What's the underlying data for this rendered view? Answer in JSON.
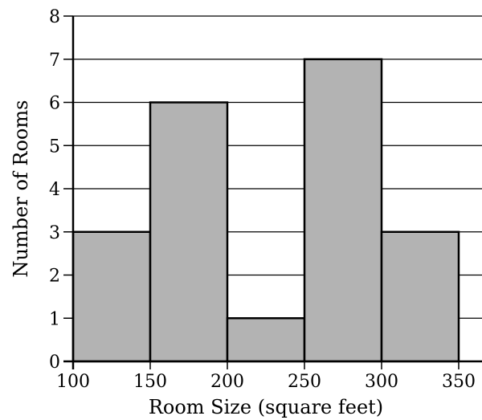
{
  "chart_data": {
    "type": "bar",
    "title": "",
    "xlabel": "Room Size (square feet)",
    "ylabel": "Number of Rooms",
    "bins": [
      {
        "from": 100,
        "to": 150,
        "count": 3
      },
      {
        "from": 150,
        "to": 200,
        "count": 6
      },
      {
        "from": 200,
        "to": 250,
        "count": 1
      },
      {
        "from": 250,
        "to": 300,
        "count": 7
      },
      {
        "from": 300,
        "to": 350,
        "count": 3
      }
    ],
    "x_ticks": [
      "100",
      "150",
      "200",
      "250",
      "300",
      "350"
    ],
    "y_ticks": [
      "0",
      "1",
      "2",
      "3",
      "4",
      "5",
      "6",
      "7",
      "8"
    ],
    "xlim": [
      100,
      350
    ],
    "ylim": [
      0,
      8
    ],
    "grid": "horizontal",
    "colors": {
      "bar": "#b3b3b3"
    }
  }
}
